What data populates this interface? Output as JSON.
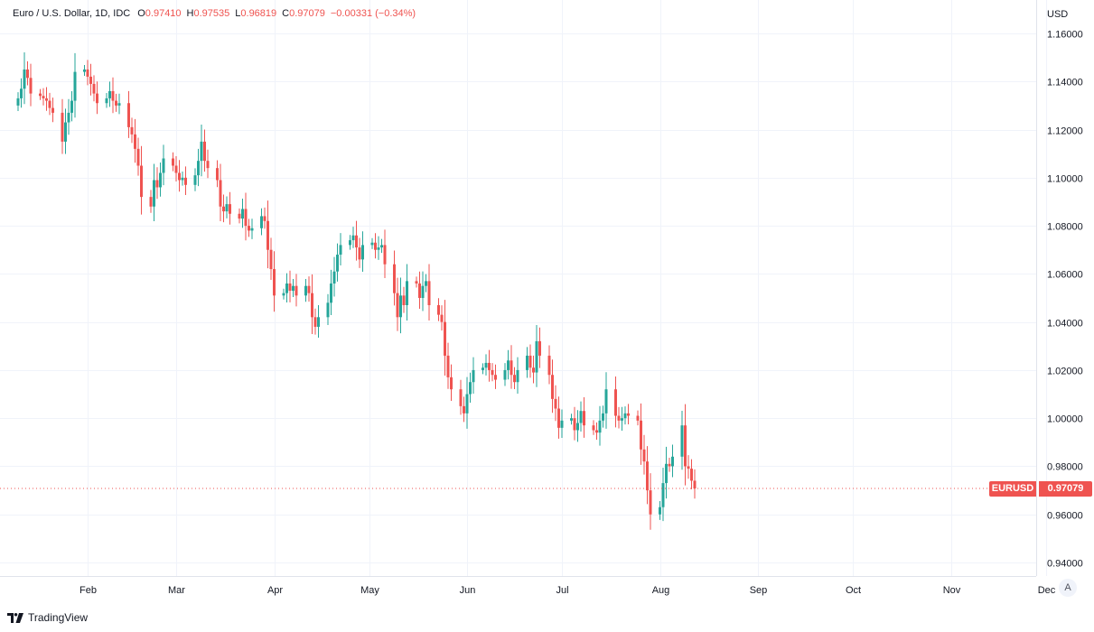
{
  "header": {
    "symbol_title": "Euro / U.S. Dollar, 1D, IDC",
    "open_label": "O",
    "open_value": "0.97410",
    "high_label": "H",
    "high_value": "0.97535",
    "low_label": "L",
    "low_value": "0.96819",
    "close_label": "C",
    "close_value": "0.97079",
    "change": "−0.00331 (−0.34%)"
  },
  "price_axis": {
    "currency": "USD",
    "last_symbol": "EURUSD",
    "last_price": "0.97079"
  },
  "auto_scale_label": "A",
  "footer": {
    "brand": "TradingView"
  },
  "colors": {
    "up": "#26a69a",
    "down": "#ef5350",
    "grid": "#f0f3fa"
  },
  "chart_data": {
    "type": "candlestick",
    "title": "Euro / U.S. Dollar, 1D, IDC",
    "xlabel": "",
    "ylabel": "USD",
    "ylim": [
      0.935,
      1.1695
    ],
    "y_ticks": [
      0.94,
      0.96,
      0.98,
      1.0,
      1.02,
      1.04,
      1.06,
      1.08,
      1.1,
      1.12,
      1.14,
      1.16
    ],
    "y_tick_labels": [
      "0.94000",
      "0.96000",
      "0.98000",
      "1.00000",
      "1.02000",
      "1.04000",
      "1.06000",
      "1.08000",
      "1.10000",
      "1.12000",
      "1.14000",
      "1.16000"
    ],
    "x_month_ticks": [
      {
        "label": "Feb",
        "date": "2022-02-01"
      },
      {
        "label": "Mar",
        "date": "2022-03-01"
      },
      {
        "label": "Apr",
        "date": "2022-04-01"
      },
      {
        "label": "May",
        "date": "2022-05-01"
      },
      {
        "label": "Jun",
        "date": "2022-06-01"
      },
      {
        "label": "Jul",
        "date": "2022-07-01"
      },
      {
        "label": "Aug",
        "date": "2022-08-01"
      },
      {
        "label": "Sep",
        "date": "2022-09-01"
      },
      {
        "label": "Oct",
        "date": "2022-10-01"
      },
      {
        "label": "Nov",
        "date": "2022-11-01"
      },
      {
        "label": "Dec",
        "date": "2022-12-01"
      }
    ],
    "grid": true,
    "last_price": 0.97079,
    "close_series": {
      "start_date": "2022-01-10",
      "frequency": "trading day",
      "first_open": 1.13,
      "closes": [
        1.133,
        1.137,
        1.145,
        1.1415,
        1.135,
        1.134,
        1.133,
        1.132,
        1.129,
        1.127,
        1.115,
        1.123,
        1.127,
        1.132,
        1.144,
        1.145,
        1.142,
        1.139,
        1.135,
        1.131,
        1.133,
        1.136,
        1.132,
        1.13,
        1.131,
        1.121,
        1.118,
        1.112,
        1.105,
        1.092,
        1.088,
        1.099,
        1.096,
        1.102,
        1.108,
        1.105,
        1.102,
        1.099,
        1.1,
        1.097,
        1.101,
        1.107,
        1.115,
        1.107,
        1.104,
        1.099,
        1.088,
        1.086,
        1.089,
        1.085,
        1.083,
        1.087,
        1.08,
        1.078,
        1.079,
        1.084,
        1.082,
        1.07,
        1.062,
        1.051,
        1.052,
        1.056,
        1.053,
        1.055,
        1.051,
        1.055,
        1.052,
        1.042,
        1.038,
        1.042,
        1.048,
        1.056,
        1.061,
        1.068,
        1.072,
        1.074,
        1.076,
        1.071,
        1.066,
        1.072,
        1.073,
        1.07,
        1.071,
        1.072,
        1.064,
        1.052,
        1.042,
        1.051,
        1.047,
        1.057,
        1.056,
        1.05,
        1.055,
        1.057,
        1.047,
        1.043,
        1.04,
        1.026,
        1.017,
        1.012,
        1.005,
        1.002,
        1.01,
        1.015,
        1.02,
        1.021,
        1.023,
        1.02,
        1.018,
        1.016,
        1.02,
        1.024,
        1.018,
        1.015,
        1.02,
        1.026,
        1.021,
        1.019,
        1.032,
        1.026,
        1.018,
        1.008,
        1.004,
        0.996,
        0.999,
        1.0,
        0.995,
        0.998,
        1.003,
        0.997,
        0.995,
        0.994,
        0.999,
        1.002,
        1.012,
        1.001,
        0.999,
        1.0,
        1.002,
        1.001,
        0.999,
        0.987,
        0.982,
        0.97,
        0.96,
        0.963,
        0.973,
        0.981,
        0.98,
        0.984,
        0.997,
        0.98,
        0.979,
        0.974,
        0.97079
      ]
    }
  }
}
